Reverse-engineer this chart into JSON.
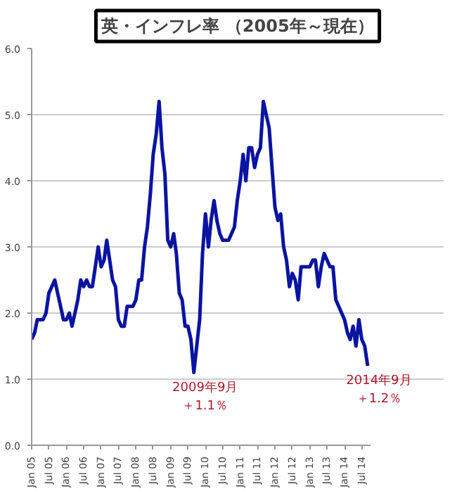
{
  "chart_data": {
    "type": "line",
    "title": "英・インフレ率 （2005年～現在）",
    "x": [
      "2005-01",
      "2005-02",
      "2005-03",
      "2005-04",
      "2005-05",
      "2005-06",
      "2005-07",
      "2005-08",
      "2005-09",
      "2005-10",
      "2005-11",
      "2005-12",
      "2006-01",
      "2006-02",
      "2006-03",
      "2006-04",
      "2006-05",
      "2006-06",
      "2006-07",
      "2006-08",
      "2006-09",
      "2006-10",
      "2006-11",
      "2006-12",
      "2007-01",
      "2007-02",
      "2007-03",
      "2007-04",
      "2007-05",
      "2007-06",
      "2007-07",
      "2007-08",
      "2007-09",
      "2007-10",
      "2007-11",
      "2007-12",
      "2008-01",
      "2008-02",
      "2008-03",
      "2008-04",
      "2008-05",
      "2008-06",
      "2008-07",
      "2008-08",
      "2008-09",
      "2008-10",
      "2008-11",
      "2008-12",
      "2009-01",
      "2009-02",
      "2009-03",
      "2009-04",
      "2009-05",
      "2009-06",
      "2009-07",
      "2009-08",
      "2009-09",
      "2009-10",
      "2009-11",
      "2009-12",
      "2010-01",
      "2010-02",
      "2010-03",
      "2010-04",
      "2010-05",
      "2010-06",
      "2010-07",
      "2010-08",
      "2010-09",
      "2010-10",
      "2010-11",
      "2010-12",
      "2011-01",
      "2011-02",
      "2011-03",
      "2011-04",
      "2011-05",
      "2011-06",
      "2011-07",
      "2011-08",
      "2011-09",
      "2011-10",
      "2011-11",
      "2011-12",
      "2012-01",
      "2012-02",
      "2012-03",
      "2012-04",
      "2012-05",
      "2012-06",
      "2012-07",
      "2012-08",
      "2012-09",
      "2012-10",
      "2012-11",
      "2012-12",
      "2013-01",
      "2013-02",
      "2013-03",
      "2013-04",
      "2013-05",
      "2013-06",
      "2013-07",
      "2013-08",
      "2013-09",
      "2013-10",
      "2013-11",
      "2013-12",
      "2014-01",
      "2014-02",
      "2014-03",
      "2014-04",
      "2014-05",
      "2014-06",
      "2014-07",
      "2014-08",
      "2014-09"
    ],
    "series": [
      {
        "color": "#0a14a0",
        "values": [
          1.6,
          1.7,
          1.9,
          1.9,
          1.9,
          2.0,
          2.3,
          2.4,
          2.5,
          2.3,
          2.1,
          1.9,
          1.9,
          2.0,
          1.8,
          2.0,
          2.2,
          2.5,
          2.4,
          2.5,
          2.4,
          2.4,
          2.7,
          3.0,
          2.7,
          2.8,
          3.1,
          2.8,
          2.5,
          2.4,
          1.9,
          1.8,
          1.8,
          2.1,
          2.1,
          2.1,
          2.2,
          2.5,
          2.5,
          3.0,
          3.3,
          3.8,
          4.4,
          4.7,
          5.2,
          4.5,
          4.1,
          3.1,
          3.0,
          3.2,
          2.9,
          2.3,
          2.2,
          1.8,
          1.8,
          1.6,
          1.1,
          1.5,
          1.9,
          2.9,
          3.5,
          3.0,
          3.4,
          3.7,
          3.4,
          3.2,
          3.1,
          3.1,
          3.1,
          3.2,
          3.3,
          3.7,
          4.0,
          4.4,
          4.0,
          4.5,
          4.5,
          4.2,
          4.4,
          4.5,
          5.2,
          5.0,
          4.8,
          4.2,
          3.6,
          3.4,
          3.5,
          3.0,
          2.8,
          2.4,
          2.6,
          2.5,
          2.2,
          2.7,
          2.7,
          2.7,
          2.7,
          2.8,
          2.8,
          2.4,
          2.7,
          2.9,
          2.8,
          2.7,
          2.7,
          2.2,
          2.1,
          2.0,
          1.9,
          1.7,
          1.6,
          1.8,
          1.5,
          1.9,
          1.6,
          1.5,
          1.2
        ]
      }
    ],
    "xlim": [
      "2005-01",
      "2014-10"
    ],
    "xticks": [
      {
        "value": "2005-01",
        "label": "Jan 05"
      },
      {
        "value": "2005-07",
        "label": "Jul 05"
      },
      {
        "value": "2006-01",
        "label": "Jan 06"
      },
      {
        "value": "2006-07",
        "label": "Jul 06"
      },
      {
        "value": "2007-01",
        "label": "Jan 07"
      },
      {
        "value": "2007-07",
        "label": "Jul 07"
      },
      {
        "value": "2008-01",
        "label": "Jan 08"
      },
      {
        "value": "2008-07",
        "label": "Jul 08"
      },
      {
        "value": "2009-01",
        "label": "Jan 09"
      },
      {
        "value": "2009-07",
        "label": "Jul 09"
      },
      {
        "value": "2010-01",
        "label": "Jan 10"
      },
      {
        "value": "2010-07",
        "label": "Jul 10"
      },
      {
        "value": "2011-01",
        "label": "Jan 11"
      },
      {
        "value": "2011-07",
        "label": "Jul 11"
      },
      {
        "value": "2012-01",
        "label": "Jan 12"
      },
      {
        "value": "2012-07",
        "label": "Jul 12"
      },
      {
        "value": "2013-01",
        "label": "Jan 13"
      },
      {
        "value": "2013-07",
        "label": "Jul 13"
      },
      {
        "value": "2014-01",
        "label": "Jan 14"
      },
      {
        "value": "2014-07",
        "label": "Jul 14"
      }
    ],
    "ylim": [
      0,
      6
    ],
    "yticks": [
      {
        "value": 0,
        "label": "0.0"
      },
      {
        "value": 1,
        "label": "1.0"
      },
      {
        "value": 2,
        "label": "2.0"
      },
      {
        "value": 3,
        "label": "3.0"
      },
      {
        "value": 4,
        "label": "4.0"
      },
      {
        "value": 5,
        "label": "5.0"
      },
      {
        "value": 6,
        "label": "6.0"
      }
    ],
    "grid": "y",
    "marker": "none",
    "line_style": "solid",
    "annotations": [
      {
        "text": "2009年9月",
        "x": "2009-09",
        "y": 1.1
      },
      {
        "text": "＋1.1％",
        "x": "2009-09",
        "y": 1.1
      },
      {
        "text": "2014年9月",
        "x": "2014-09",
        "y": 1.2
      },
      {
        "text": "＋1.2％",
        "x": "2014-09",
        "y": 1.2
      }
    ]
  }
}
